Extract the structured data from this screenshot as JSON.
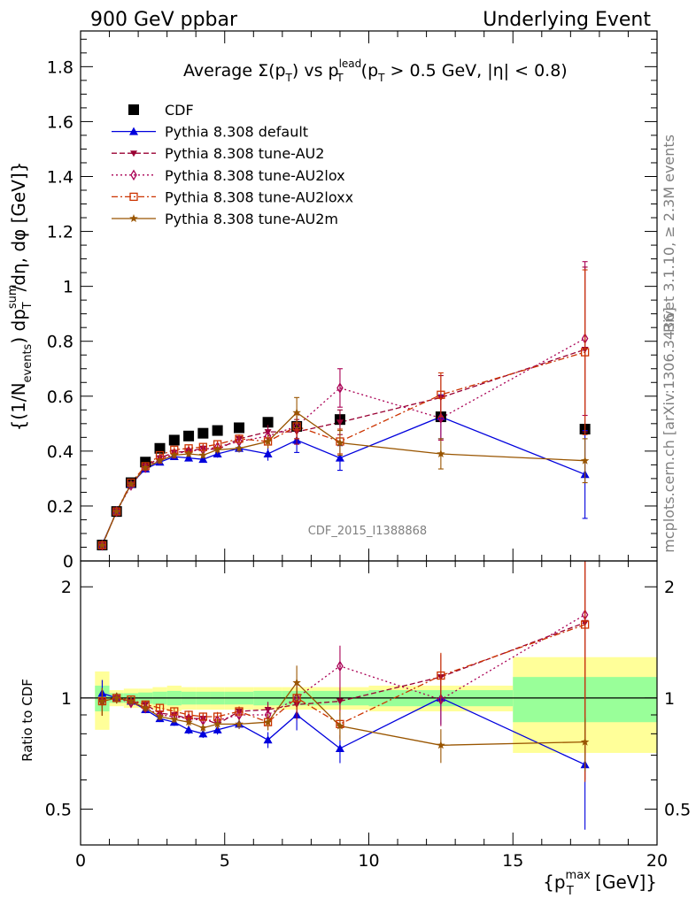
{
  "header": {
    "left": "900 GeV ppbar",
    "right": "Underlying Event"
  },
  "side": {
    "rivet": "Rivet 3.1.10, ≥ 2.3M events",
    "mcplots": "mcplots.cern.ch [arXiv:1306.3436]"
  },
  "chart_data": [
    {
      "type": "scatter",
      "title": "Average Σ(p_T) vs p_T^lead (p_T > 0.5 GeV, |η| < 0.8)",
      "title_parts": {
        "a": "Average ",
        "sigma": "Σ(p",
        "T": "T",
        "b": ") vs p",
        "lead": "lead",
        "c": " (p",
        "d": " > 0.5 GeV, |η| < 0.8)"
      },
      "ylabel_parts": {
        "a": "{(1/N",
        "events": "events",
        "b": ") dp",
        "sum": "sum",
        "c": "/dη, dφ [GeV]}",
        "T": "T"
      },
      "watermark": "CDF_2015_I1388868",
      "xlim": [
        0,
        20
      ],
      "ylim": [
        0,
        1.93
      ],
      "yticks": [
        0,
        0.2,
        0.4,
        0.6,
        0.8,
        1,
        1.2,
        1.4,
        1.6,
        1.8
      ],
      "ytick_labels": [
        "0",
        "0.2",
        "0.4",
        "0.6",
        "0.8",
        "1",
        "1.2",
        "1.4",
        "1.6",
        "1.8"
      ],
      "legend_position": "top-left",
      "x": [
        0.75,
        1.25,
        1.75,
        2.25,
        2.75,
        3.25,
        3.75,
        4.25,
        4.75,
        5.5,
        6.5,
        7.5,
        9.0,
        12.5,
        17.5
      ],
      "series": [
        {
          "name": "CDF",
          "color": "#000000",
          "marker": "square-filled",
          "line": "none",
          "values": [
            0.058,
            0.18,
            0.285,
            0.36,
            0.41,
            0.44,
            0.455,
            0.465,
            0.475,
            0.485,
            0.505,
            0.49,
            0.515,
            0.525,
            0.48
          ]
        },
        {
          "name": "Pythia 8.308 default",
          "color": "#0000dd",
          "marker": "triangle-up-filled",
          "line": "solid",
          "values": [
            0.06,
            0.18,
            0.28,
            0.335,
            0.36,
            0.38,
            0.375,
            0.37,
            0.39,
            0.41,
            0.39,
            0.44,
            0.375,
            0.525,
            0.315
          ],
          "errors": [
            0.005,
            0.006,
            0.007,
            0.008,
            0.009,
            0.01,
            0.012,
            0.012,
            0.014,
            0.015,
            0.025,
            0.045,
            0.045,
            0.08,
            0.16
          ]
        },
        {
          "name": "Pythia 8.308 tune-AU2",
          "color": "#990033",
          "marker": "triangle-down-filled",
          "line": "dashed",
          "values": [
            0.057,
            0.18,
            0.28,
            0.345,
            0.375,
            0.395,
            0.4,
            0.41,
            0.405,
            0.445,
            0.47,
            0.47,
            0.505,
            0.595,
            0.77
          ],
          "errors": [
            0.005,
            0.006,
            0.007,
            0.008,
            0.009,
            0.01,
            0.012,
            0.012,
            0.014,
            0.015,
            0.025,
            0.045,
            0.045,
            0.08,
            0.3
          ]
        },
        {
          "name": "Pythia 8.308 tune-AU2lox",
          "color": "#aa0055",
          "marker": "diamond-open",
          "line": "dotted",
          "values": [
            0.057,
            0.18,
            0.275,
            0.34,
            0.37,
            0.39,
            0.4,
            0.405,
            0.415,
            0.435,
            0.455,
            0.49,
            0.63,
            0.52,
            0.81
          ],
          "errors": [
            0.005,
            0.006,
            0.007,
            0.008,
            0.009,
            0.01,
            0.012,
            0.012,
            0.014,
            0.015,
            0.025,
            0.045,
            0.07,
            0.08,
            0.28
          ]
        },
        {
          "name": "Pythia 8.308 tune-AU2loxx",
          "color": "#cc3300",
          "marker": "square-open",
          "line": "dashdot",
          "values": [
            0.057,
            0.18,
            0.285,
            0.345,
            0.385,
            0.405,
            0.41,
            0.415,
            0.425,
            0.445,
            0.435,
            0.49,
            0.435,
            0.605,
            0.76
          ],
          "errors": [
            0.005,
            0.006,
            0.007,
            0.008,
            0.009,
            0.01,
            0.012,
            0.012,
            0.014,
            0.015,
            0.025,
            0.045,
            0.045,
            0.08,
            0.3
          ]
        },
        {
          "name": "Pythia 8.308 tune-AU2m",
          "color": "#995500",
          "marker": "star",
          "line": "solid",
          "values": [
            0.057,
            0.18,
            0.28,
            0.34,
            0.365,
            0.385,
            0.39,
            0.385,
            0.405,
            0.41,
            0.435,
            0.54,
            0.43,
            0.39,
            0.365
          ],
          "errors": [
            0.005,
            0.006,
            0.007,
            0.008,
            0.009,
            0.01,
            0.012,
            0.012,
            0.014,
            0.015,
            0.025,
            0.055,
            0.045,
            0.055,
            0.08
          ]
        }
      ]
    },
    {
      "type": "scatter",
      "ylabel": "Ratio to CDF",
      "xlabel": "{p_T^max [GeV]}",
      "xlabel_parts": {
        "a": "{p",
        "max": "max",
        "b": " [GeV]}",
        "T": "T"
      },
      "xlim": [
        0,
        20
      ],
      "ylim": [
        0.4,
        2.35
      ],
      "y_scale": "log",
      "xticks": [
        0,
        5,
        10,
        15,
        20
      ],
      "xtick_labels": [
        "0",
        "5",
        "10",
        "15",
        "20"
      ],
      "yticks": [
        0.5,
        1,
        2
      ],
      "ytick_labels": [
        "0.5",
        "1",
        "2"
      ],
      "ratio_series": [
        {
          "name": "Pythia 8.308 default",
          "values": [
            1.03,
            1.0,
            0.98,
            0.93,
            0.88,
            0.86,
            0.82,
            0.8,
            0.82,
            0.85,
            0.77,
            0.9,
            0.73,
            1.0,
            0.66
          ]
        },
        {
          "name": "Pythia 8.308 tune-AU2",
          "values": [
            0.98,
            1.0,
            0.98,
            0.96,
            0.91,
            0.9,
            0.88,
            0.88,
            0.85,
            0.92,
            0.93,
            0.96,
            0.98,
            1.14,
            1.6
          ]
        },
        {
          "name": "Pythia 8.308 tune-AU2lox",
          "values": [
            0.98,
            1.0,
            0.97,
            0.94,
            0.9,
            0.89,
            0.88,
            0.87,
            0.87,
            0.9,
            0.9,
            1.0,
            1.22,
            0.99,
            1.68
          ]
        },
        {
          "name": "Pythia 8.308 tune-AU2loxx",
          "values": [
            0.98,
            1.0,
            0.99,
            0.96,
            0.94,
            0.92,
            0.9,
            0.89,
            0.89,
            0.92,
            0.86,
            1.0,
            0.85,
            1.15,
            1.58
          ]
        },
        {
          "name": "Pythia 8.308 tune-AU2m",
          "values": [
            0.98,
            1.0,
            0.98,
            0.94,
            0.89,
            0.875,
            0.86,
            0.83,
            0.85,
            0.85,
            0.86,
            1.1,
            0.84,
            0.745,
            0.76
          ]
        }
      ],
      "bands": {
        "x_edges": [
          0.5,
          1.0,
          1.5,
          2.0,
          2.5,
          3.0,
          3.5,
          4.0,
          4.5,
          5.0,
          6.0,
          7.0,
          8.0,
          10.0,
          15.0,
          20.0
        ],
        "green_half": [
          0.08,
          0.03,
          0.03,
          0.035,
          0.04,
          0.045,
          0.04,
          0.04,
          0.04,
          0.04,
          0.045,
          0.045,
          0.045,
          0.05,
          0.14
        ],
        "yellow_half": [
          0.18,
          0.05,
          0.06,
          0.06,
          0.07,
          0.08,
          0.07,
          0.07,
          0.07,
          0.07,
          0.07,
          0.07,
          0.07,
          0.08,
          0.29
        ]
      },
      "colors": {
        "green": "#99ff99",
        "yellow": "#ffff99"
      }
    }
  ]
}
